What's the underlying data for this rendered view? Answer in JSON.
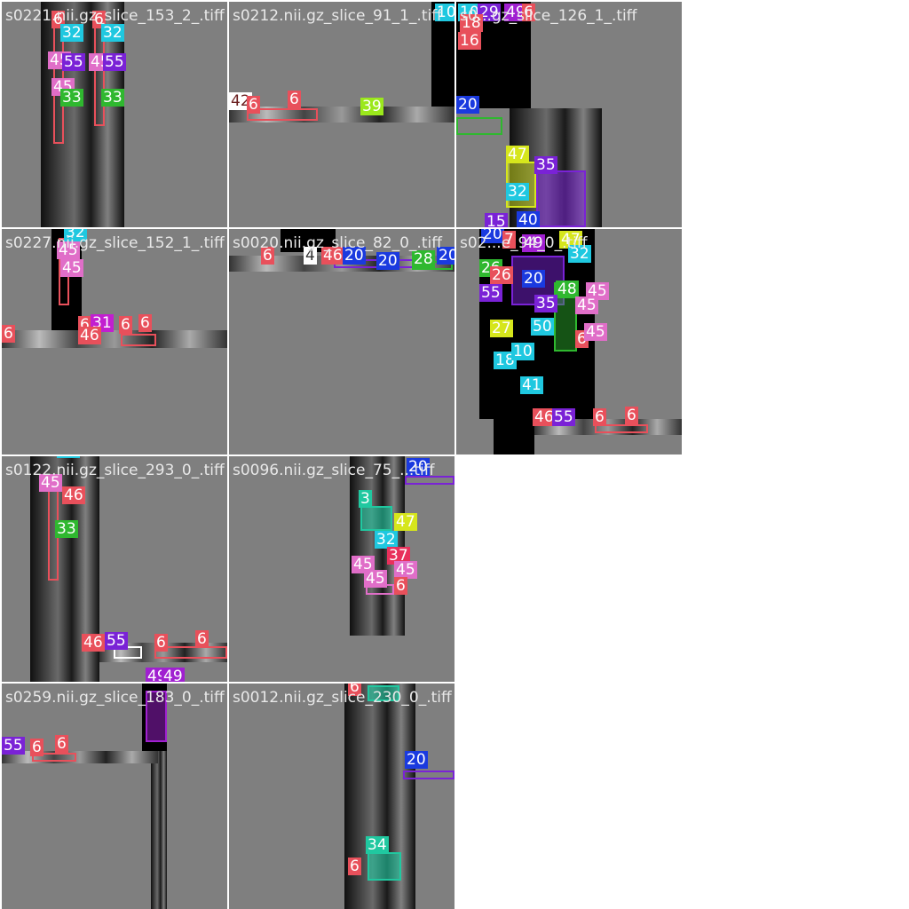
{
  "tiles": [
    {
      "title": "s0221.nii.gz_slice_153_2_.tiff",
      "labels": [
        {
          "t": "6",
          "c": "#e8505b"
        },
        {
          "t": "6",
          "c": "#e8505b"
        },
        {
          "t": "32",
          "c": "#1fc8e0"
        },
        {
          "t": "32",
          "c": "#1fc8e0"
        },
        {
          "t": "45",
          "c": "#e06ec8"
        },
        {
          "t": "55",
          "c": "#7a22d6"
        },
        {
          "t": "45",
          "c": "#e06ec8"
        },
        {
          "t": "55",
          "c": "#7a22d6"
        },
        {
          "t": "45",
          "c": "#e06ec8"
        },
        {
          "t": "33",
          "c": "#2fb82f"
        },
        {
          "t": "33",
          "c": "#2fb82f"
        }
      ]
    },
    {
      "title": "s0212.nii.gz_slice_91_1_.tiff",
      "labels": [
        {
          "t": "42",
          "c": "#ffffff"
        },
        {
          "t": "6",
          "c": "#e8505b"
        },
        {
          "t": "6",
          "c": "#e8505b"
        },
        {
          "t": "39",
          "c": "#9be81c"
        },
        {
          "t": "10",
          "c": "#1fc8e0"
        }
      ]
    },
    {
      "title": "s0...gz_slice_126_1_.tiff",
      "labels": [
        {
          "t": "10",
          "c": "#1fc8e0"
        },
        {
          "t": "29",
          "c": "#7a22d6"
        },
        {
          "t": "49",
          "c": "#a020d0"
        },
        {
          "t": "6",
          "c": "#e8505b"
        },
        {
          "t": "18",
          "c": "#e8505b"
        },
        {
          "t": "16",
          "c": "#e8505b"
        },
        {
          "t": "20",
          "c": "#1a3adf"
        },
        {
          "t": "47",
          "c": "#d6e61c"
        },
        {
          "t": "35",
          "c": "#7a22d6"
        },
        {
          "t": "32",
          "c": "#1fc8e0"
        },
        {
          "t": "15",
          "c": "#7a22d6"
        },
        {
          "t": "40",
          "c": "#1a3adf"
        }
      ]
    },
    {
      "title": "s0227.nii.gz_slice_152_1_.tiff",
      "labels": [
        {
          "t": "45",
          "c": "#e06ec8"
        },
        {
          "t": "32",
          "c": "#1fc8e0"
        },
        {
          "t": "45",
          "c": "#e06ec8"
        },
        {
          "t": "45",
          "c": "#e06ec8"
        },
        {
          "t": "6",
          "c": "#e8505b"
        },
        {
          "t": "6",
          "c": "#e8505b"
        },
        {
          "t": "31",
          "c": "#c21fd0"
        },
        {
          "t": "6",
          "c": "#e8505b"
        },
        {
          "t": "6",
          "c": "#e8505b"
        },
        {
          "t": "46",
          "c": "#e8505b"
        }
      ]
    },
    {
      "title": "s0020.nii.gz_slice_82_0_.tiff",
      "labels": [
        {
          "t": "6",
          "c": "#e8505b"
        },
        {
          "t": "4",
          "c": "#ffffff"
        },
        {
          "t": "46",
          "c": "#e8505b"
        },
        {
          "t": "20",
          "c": "#1a3adf"
        },
        {
          "t": "20",
          "c": "#1a3adf"
        },
        {
          "t": "28",
          "c": "#2fb82f"
        },
        {
          "t": "20",
          "c": "#1a3adf"
        }
      ]
    },
    {
      "title": "s02...e_94_0_.tiff",
      "labels": [
        {
          "t": "20",
          "c": "#1a3adf"
        },
        {
          "t": "7",
          "c": "#e8505b"
        },
        {
          "t": "49",
          "c": "#a020d0"
        },
        {
          "t": "47",
          "c": "#d6e61c"
        },
        {
          "t": "32",
          "c": "#1fc8e0"
        },
        {
          "t": "26",
          "c": "#2fb82f"
        },
        {
          "t": "26",
          "c": "#e8505b"
        },
        {
          "t": "20",
          "c": "#1a3adf"
        },
        {
          "t": "55",
          "c": "#7a22d6"
        },
        {
          "t": "48",
          "c": "#2fb82f"
        },
        {
          "t": "45",
          "c": "#e06ec8"
        },
        {
          "t": "35",
          "c": "#7a22d6"
        },
        {
          "t": "45",
          "c": "#e06ec8"
        },
        {
          "t": "27",
          "c": "#d6e61c"
        },
        {
          "t": "50",
          "c": "#1fc8e0"
        },
        {
          "t": "6",
          "c": "#e8505b"
        },
        {
          "t": "45",
          "c": "#e06ec8"
        },
        {
          "t": "18",
          "c": "#1fc8e0"
        },
        {
          "t": "10",
          "c": "#1fc8e0"
        },
        {
          "t": "41",
          "c": "#1fc8e0"
        },
        {
          "t": "46",
          "c": "#e8505b"
        },
        {
          "t": "55",
          "c": "#7a22d6"
        },
        {
          "t": "6",
          "c": "#e8505b"
        },
        {
          "t": "6",
          "c": "#e8505b"
        }
      ]
    },
    {
      "title": "s0122.nii.gz_slice_293_0_.tiff",
      "labels": [
        {
          "t": "45",
          "c": "#e06ec8"
        },
        {
          "t": "32",
          "c": "#1fc8e0"
        },
        {
          "t": "45",
          "c": "#e06ec8"
        },
        {
          "t": "46",
          "c": "#e8505b"
        },
        {
          "t": "33",
          "c": "#2fb82f"
        },
        {
          "t": "46",
          "c": "#e8505b"
        },
        {
          "t": "55",
          "c": "#7a22d6"
        },
        {
          "t": "6",
          "c": "#e8505b"
        },
        {
          "t": "6",
          "c": "#e8505b"
        },
        {
          "t": "49",
          "c": "#a020d0"
        },
        {
          "t": "49",
          "c": "#a020d0"
        }
      ]
    },
    {
      "title": "s0096.nii.gz_slice_75_...tiff",
      "labels": [
        {
          "t": "20",
          "c": "#1a3adf"
        },
        {
          "t": "3",
          "c": "#20c8a0"
        },
        {
          "t": "47",
          "c": "#d6e61c"
        },
        {
          "t": "32",
          "c": "#1fc8e0"
        },
        {
          "t": "37",
          "c": "#e8305b"
        },
        {
          "t": "45",
          "c": "#e06ec8"
        },
        {
          "t": "45",
          "c": "#e06ec8"
        },
        {
          "t": "45",
          "c": "#e06ec8"
        },
        {
          "t": "6",
          "c": "#e8505b"
        }
      ]
    },
    {
      "title": "s0259.nii.gz_slice_183_0_.tiff",
      "labels": [
        {
          "t": "55",
          "c": "#7a22d6"
        },
        {
          "t": "6",
          "c": "#e8505b"
        },
        {
          "t": "6",
          "c": "#e8505b"
        }
      ]
    },
    {
      "title": "s0012.nii.gz_slice_230_0_.tiff",
      "labels": [
        {
          "t": "34",
          "c": "#20c8a0"
        },
        {
          "t": "6",
          "c": "#e8505b"
        },
        {
          "t": "20",
          "c": "#1a3adf"
        },
        {
          "t": "34",
          "c": "#20c8a0"
        },
        {
          "t": "6",
          "c": "#e8505b"
        }
      ]
    }
  ]
}
